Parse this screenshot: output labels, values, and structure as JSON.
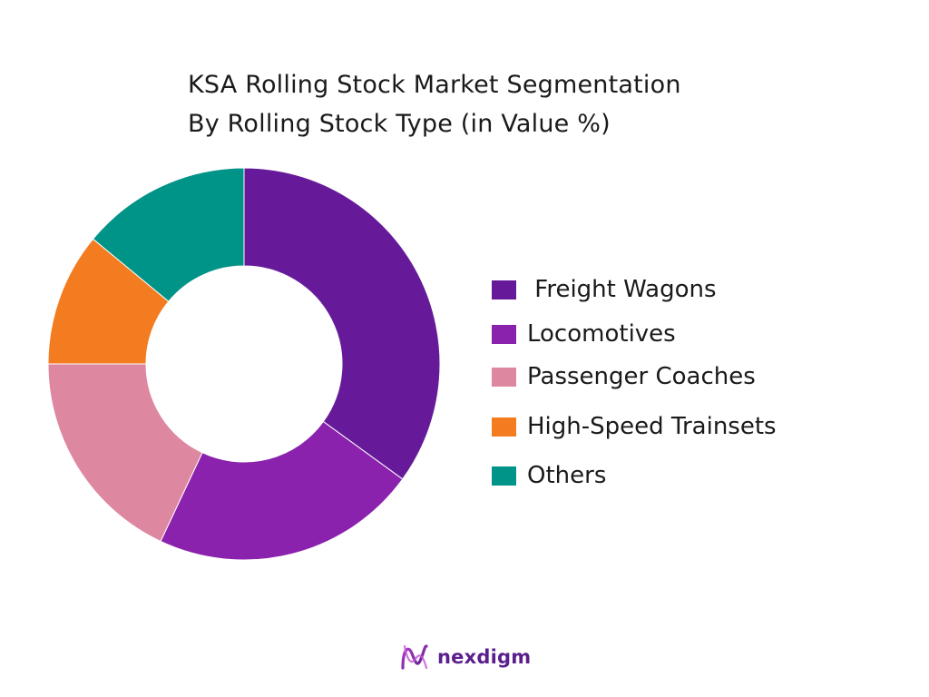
{
  "chart_data": {
    "type": "pie",
    "title_lines": [
      "KSA Rolling Stock Market Segmentation",
      "By Rolling Stock Type (in Value %)"
    ],
    "categories": [
      " Freight Wagons",
      "Locomotives",
      "Passenger Coaches",
      "High-Speed Trainsets",
      "Others"
    ],
    "values": [
      35,
      22,
      18,
      11,
      14
    ],
    "colors": [
      "#661a9a",
      "#8b22ae",
      "#dd87a0",
      "#f47c20",
      "#009387"
    ],
    "donut": true,
    "legend_position": "right"
  },
  "brand": {
    "name": "nexdigm"
  }
}
